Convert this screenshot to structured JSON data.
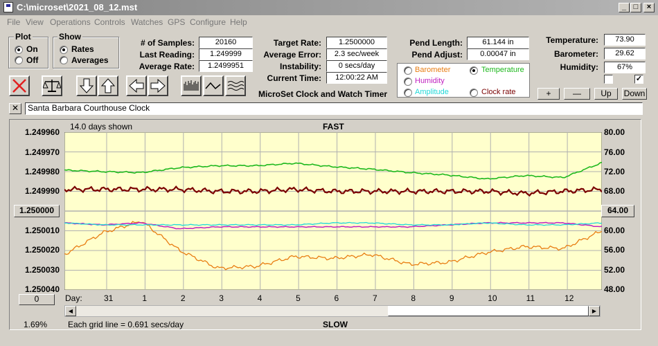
{
  "window": {
    "title": "C:\\microset\\2021_08_12.mst",
    "btn_min": "_",
    "btn_max": "□",
    "btn_close": "×"
  },
  "menu": [
    "File",
    "View",
    "Operations",
    "Controls",
    "Watches",
    "GPS",
    "Configure",
    "Help"
  ],
  "plot": {
    "title": "Plot",
    "on": "On",
    "off": "Off",
    "selected": "On"
  },
  "show": {
    "title": "Show",
    "rates": "Rates",
    "averages": "Averages",
    "selected": "Rates"
  },
  "stats": {
    "samples_label": "# of Samples:",
    "samples": "20160",
    "last_label": "Last Reading:",
    "last": "1.249999",
    "avg_rate_label": "Average Rate:",
    "avg_rate": "1.2499951",
    "target_label": "Target Rate:",
    "target": "1.2500000",
    "avg_err_label": "Average Error:",
    "avg_err": "2.3 sec/week",
    "instab_label": "Instability:",
    "instab": "0 secs/day",
    "time_label": "Current Time:",
    "time": "12:00:22 AM",
    "pend_len_label": "Pend Length:",
    "pend_len": "61.144 in",
    "pend_adj_label": "Pend Adjust:",
    "pend_adj": "0.00047 in",
    "temp_label": "Temperature:",
    "temp": "73.90",
    "baro_label": "Barometer:",
    "baro": "29.62",
    "hum_label": "Humidity:",
    "hum": "67%"
  },
  "app_name": "MicroSet Clock and Watch Timer",
  "sensor_options": {
    "barometer": "Barometer",
    "temperature": "Temperature",
    "humidity": "Humidity",
    "amplitude": "Amplitude",
    "clock_rate": "Clock rate",
    "selected": "Temperature"
  },
  "colors": {
    "barometer": "#e87d12",
    "temperature": "#1db81d",
    "humidity": "#c020c0",
    "amplitude": "#20d8d8",
    "clock_rate": "#7a0000",
    "plot_bg": "#ffffcc",
    "grid": "#b0b0b0"
  },
  "right_checks": {
    "left_checked": false,
    "right_checked": true
  },
  "right_buttons": {
    "plus": "+",
    "minus": "—",
    "up": "Up",
    "down": "Down"
  },
  "clock_name": "Santa Barbara Courthouse Clock",
  "toolbar_icons": [
    "cancel-icon",
    "scale-icon",
    "arrow-down-icon",
    "arrow-up-icon",
    "arrow-left-icon",
    "arrow-right-icon",
    "bars-icon",
    "wave-icon",
    "waves-icon"
  ],
  "graph": {
    "days_shown": "14.0 days shown",
    "fast": "FAST",
    "slow": "SLOW",
    "grid_note": "Each grid line = 0.691 secs/day",
    "percent": "1.69%",
    "day_prefix": "Day:",
    "days": [
      "31",
      "1",
      "2",
      "3",
      "4",
      "5",
      "6",
      "7",
      "8",
      "9",
      "10",
      "11",
      "12"
    ],
    "center_left": "1.250000",
    "center_right": "64.00",
    "offset_btn": "0",
    "left_ticks": [
      "1.249960",
      "1.249970",
      "1.249980",
      "1.249990",
      "1.250010",
      "1.250020",
      "1.250030",
      "1.250040"
    ],
    "right_ticks": [
      "80.00",
      "76.00",
      "72.00",
      "68.00",
      "60.00",
      "56.00",
      "52.00",
      "48.00"
    ]
  },
  "chart_data": {
    "type": "line",
    "x_unit": "days",
    "x": [
      0,
      1,
      2,
      3,
      4,
      5,
      6,
      7,
      8,
      9,
      10,
      11,
      12,
      13,
      14
    ],
    "rate_ylim": [
      1.25004,
      1.24996
    ],
    "temp_ylim": [
      48,
      80
    ],
    "series": [
      {
        "name": "Clock rate",
        "axis": "rate",
        "values": [
          1.249989,
          1.249989,
          1.249989,
          1.249989,
          1.24999,
          1.24999,
          1.249989,
          1.24999,
          1.24999,
          1.24999,
          1.24999,
          1.24999,
          1.249991,
          1.24999,
          1.249989
        ]
      },
      {
        "name": "Temperature",
        "axis": "temp",
        "values": [
          72.3,
          72.0,
          71.8,
          72.8,
          73.2,
          73.2,
          73.7,
          73.0,
          72.5,
          71.8,
          71.3,
          70.5,
          71.2,
          70.8,
          73.8
        ]
      },
      {
        "name": "Barometer",
        "axis": "rate",
        "values": [
          1.250022,
          1.250011,
          1.250005,
          1.25002,
          1.250029,
          1.250028,
          1.250023,
          1.250024,
          1.250022,
          1.250027,
          1.250026,
          1.250021,
          1.250018,
          1.250019,
          1.25001
        ]
      },
      {
        "name": "Humidity",
        "axis": "rate",
        "values": [
          1.250006,
          1.250007,
          1.250006,
          1.250009,
          1.250008,
          1.250008,
          1.250008,
          1.250008,
          1.250008,
          1.250008,
          1.250007,
          1.250006,
          1.250006,
          1.250006,
          1.250008
        ]
      },
      {
        "name": "Amplitude",
        "axis": "rate",
        "values": [
          1.250006,
          1.250007,
          1.250007,
          1.250007,
          1.250007,
          1.250007,
          1.250007,
          1.250006,
          1.250006,
          1.250007,
          1.250007,
          1.250006,
          1.250007,
          1.250007,
          1.250006
        ]
      }
    ]
  }
}
